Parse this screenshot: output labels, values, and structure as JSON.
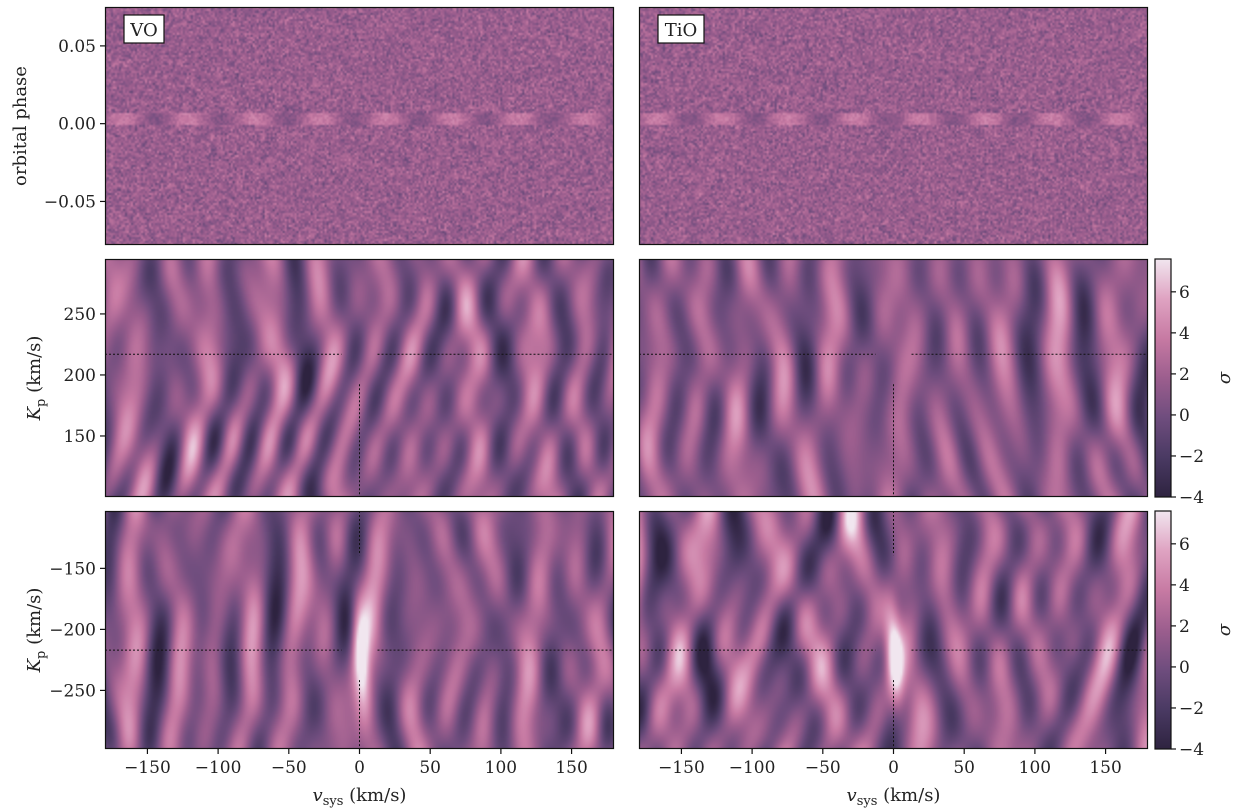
{
  "colormap": {
    "name": "sequential-purple-pink",
    "stops": [
      "#2e2340",
      "#4a3a63",
      "#6f4d7e",
      "#9c5e8e",
      "#c77aa3",
      "#dfa3c2",
      "#f1e6ef"
    ]
  },
  "chart_data": [
    {
      "id": "vo-phase",
      "type": "heatmap",
      "species": "VO",
      "ylabel": "orbital phase",
      "xlim": [
        -180,
        180
      ],
      "ylim": [
        -0.078,
        0.075
      ],
      "yticks": [
        0.05,
        0.0,
        -0.05
      ],
      "yticklabels": [
        "0.05",
        "0.00",
        "−0.05"
      ],
      "noise": "uniform-random",
      "stripe_phase": 0.003
    },
    {
      "id": "tio-phase",
      "type": "heatmap",
      "species": "TiO",
      "xlim": [
        -180,
        180
      ],
      "ylim": [
        -0.078,
        0.075
      ],
      "noise": "uniform-random",
      "stripe_phase": 0.003
    },
    {
      "id": "vo-kp-pos",
      "type": "heatmap",
      "ylabel_main": "K",
      "ylabel_sub": "p",
      "ylabel_units": " (km/s)",
      "xlim": [
        -180,
        180
      ],
      "ylim": [
        100,
        295
      ],
      "yticks": [
        250,
        200,
        150
      ],
      "yticklabels": [
        "250",
        "200",
        "150"
      ],
      "crosshair": {
        "v_sys": 0,
        "K_p": 217
      },
      "signal_peak_sigma": 0
    },
    {
      "id": "tio-kp-pos",
      "type": "heatmap",
      "xlim": [
        -180,
        180
      ],
      "ylim": [
        100,
        295
      ],
      "crosshair": {
        "v_sys": 0,
        "K_p": 217
      },
      "signal_peak_sigma": 0,
      "colorbar": {
        "label": "σ",
        "range": [
          -4,
          7.6
        ],
        "ticks": [
          6,
          4,
          2,
          0,
          -2,
          -4
        ],
        "ticklabels": [
          "6",
          "4",
          "2",
          "0",
          "−2",
          "−4"
        ]
      }
    },
    {
      "id": "vo-kp-neg",
      "type": "heatmap",
      "ylabel_main": "K",
      "ylabel_sub": "p",
      "ylabel_units": " (km/s)",
      "xlabel_main": "v",
      "xlabel_sub": "sys",
      "xlabel_units": " (km/s)",
      "xlim": [
        -180,
        180
      ],
      "ylim": [
        -298,
        -103
      ],
      "yticks": [
        -150,
        -200,
        -250
      ],
      "yticklabels": [
        "−150",
        "−200",
        "−250"
      ],
      "xticks": [
        -150,
        -100,
        -50,
        0,
        50,
        100,
        150
      ],
      "xticklabels": [
        "−150",
        "−100",
        "−50",
        "0",
        "50",
        "100",
        "150"
      ],
      "crosshair": {
        "v_sys": 0,
        "K_p": -217
      },
      "signal_peak_sigma": 6.5
    },
    {
      "id": "tio-kp-neg",
      "type": "heatmap",
      "xlabel_main": "v",
      "xlabel_sub": "sys",
      "xlabel_units": " (km/s)",
      "xlim": [
        -180,
        180
      ],
      "ylim": [
        -298,
        -103
      ],
      "xticks": [
        -150,
        -100,
        -50,
        0,
        50,
        100,
        150
      ],
      "xticklabels": [
        "−150",
        "−100",
        "−50",
        "0",
        "50",
        "100",
        "150"
      ],
      "crosshair": {
        "v_sys": 0,
        "K_p": -217
      },
      "signal_peak_sigma": 7.4,
      "colorbar": {
        "label": "σ",
        "range": [
          -4,
          7.6
        ],
        "ticks": [
          6,
          4,
          2,
          0,
          -2,
          -4
        ],
        "ticklabels": [
          "6",
          "4",
          "2",
          "0",
          "−2",
          "−4"
        ]
      }
    }
  ]
}
